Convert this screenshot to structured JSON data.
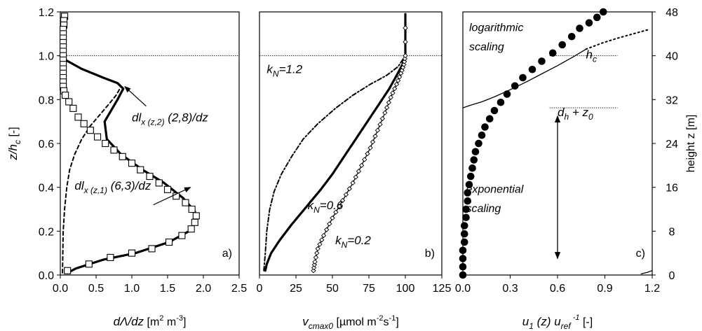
{
  "chart_data": [
    {
      "type": "line",
      "panel_label": "a)",
      "xlabel_parts": {
        "main": "dΛ/dz",
        "unit_pre": " [m",
        "sup1": "2",
        "mid": " m",
        "sup2": "-3",
        "end": "]"
      },
      "ylabel": "z/h_c [-]",
      "ylabel_parts": {
        "a": "z/h",
        "sub": "c",
        "b": " [-]"
      },
      "xlim": [
        0,
        2.5
      ],
      "ylim": [
        0,
        1.2
      ],
      "xticks": [
        "0.0",
        "0.5",
        "1.0",
        "1.5",
        "2.0",
        "2.5"
      ],
      "yticks": [
        "0.0",
        "0.2",
        "0.4",
        "0.6",
        "0.8",
        "1.0",
        "1.2"
      ],
      "reference_line_y": 1.0,
      "series": [
        {
          "style": "thick-solid",
          "x": [
            0.0,
            0.05,
            0.3,
            0.6,
            0.8,
            0.88,
            0.8,
            0.62,
            0.65,
            0.85,
            1.15,
            1.45,
            1.72,
            1.88,
            1.9,
            1.8,
            1.52,
            1.05,
            0.6,
            0.22,
            0.1
          ],
          "y": [
            1.0,
            0.985,
            0.94,
            0.9,
            0.875,
            0.85,
            0.8,
            0.7,
            0.62,
            0.55,
            0.48,
            0.42,
            0.35,
            0.29,
            0.25,
            0.2,
            0.15,
            0.1,
            0.07,
            0.03,
            0.01
          ]
        },
        {
          "style": "dashed",
          "x": [
            0.03,
            0.04,
            0.06,
            0.09,
            0.13,
            0.2,
            0.3,
            0.42,
            0.55,
            0.68,
            0.78,
            0.85
          ],
          "y": [
            0.01,
            0.2,
            0.3,
            0.4,
            0.48,
            0.55,
            0.62,
            0.68,
            0.73,
            0.78,
            0.82,
            0.86
          ]
        },
        {
          "style": "square-markers",
          "x": [
            0.06,
            0.05,
            0.05,
            0.04,
            0.04,
            0.04,
            0.04,
            0.04,
            0.04,
            0.04,
            0.04,
            0.04,
            0.04,
            0.04,
            0.04,
            0.04,
            0.04,
            0.05,
            0.07,
            0.12,
            0.18,
            0.25,
            0.33,
            0.42,
            0.52,
            0.63,
            0.75,
            0.87,
            1.0,
            1.12,
            1.25,
            1.38,
            1.5,
            1.62,
            1.75,
            1.84,
            1.9,
            1.88,
            1.83,
            1.7,
            1.52,
            1.28,
            1.0,
            0.7,
            0.4,
            0.1
          ],
          "y": [
            1.18,
            1.16,
            1.14,
            1.12,
            1.1,
            1.08,
            1.06,
            1.04,
            1.02,
            1.0,
            0.98,
            0.96,
            0.94,
            0.92,
            0.9,
            0.88,
            0.86,
            0.84,
            0.82,
            0.79,
            0.76,
            0.72,
            0.69,
            0.66,
            0.63,
            0.6,
            0.57,
            0.54,
            0.51,
            0.48,
            0.45,
            0.42,
            0.39,
            0.36,
            0.33,
            0.3,
            0.27,
            0.24,
            0.21,
            0.18,
            0.15,
            0.12,
            0.1,
            0.08,
            0.05,
            0.02
          ]
        }
      ],
      "annotations": [
        {
          "id": "a1",
          "parts": {
            "main": "dl",
            "sub": "x (z,2)",
            "rest": " (2,8)/dz"
          },
          "label_x": 1.0,
          "label_y": 0.7,
          "arrow_from": [
            1.2,
            0.77
          ],
          "arrow_to": [
            0.9,
            0.86
          ]
        },
        {
          "id": "a2",
          "parts": {
            "main": "dl",
            "sub": "x (z,1)",
            "rest": " (6,3)/dz"
          },
          "label_x": 0.2,
          "label_y": 0.39,
          "arrow_from": [
            1.3,
            0.32
          ],
          "arrow_to": [
            1.82,
            0.4
          ]
        }
      ]
    },
    {
      "type": "line",
      "panel_label": "b)",
      "xlabel_parts": {
        "main": "v",
        "sub": "cmax0",
        "unit_pre": " [µmol m",
        "sup1": "-2",
        "mid": "s",
        "sup2": "-1",
        "end": "]"
      },
      "xlim": [
        0,
        125
      ],
      "ylim": [
        0,
        1.2
      ],
      "xticks": [
        "0",
        "25",
        "50",
        "75",
        "100",
        "125"
      ],
      "reference_line_y": 1.0,
      "series": [
        {
          "style": "dash-dot",
          "name": "k_N=1.2",
          "x": [
            3,
            4,
            5,
            7,
            10,
            15,
            22,
            30,
            40,
            52,
            64,
            76,
            87,
            95,
            98,
            100,
            100
          ],
          "y": [
            0.02,
            0.1,
            0.2,
            0.3,
            0.38,
            0.46,
            0.54,
            0.62,
            0.69,
            0.76,
            0.82,
            0.87,
            0.91,
            0.95,
            0.98,
            1.0,
            1.19
          ]
        },
        {
          "style": "thick-solid",
          "name": "k_N=0.6",
          "x": [
            4,
            5,
            8,
            14,
            22,
            32,
            42,
            50,
            58,
            66,
            74,
            82,
            89,
            94,
            98,
            100,
            100
          ],
          "y": [
            0.02,
            0.05,
            0.1,
            0.16,
            0.23,
            0.31,
            0.39,
            0.46,
            0.54,
            0.62,
            0.7,
            0.78,
            0.85,
            0.91,
            0.96,
            1.0,
            1.19
          ]
        },
        {
          "style": "solid-diamond",
          "name": "k_N=0.2",
          "x": [
            37,
            38,
            40,
            44,
            50,
            57,
            64,
            70,
            76,
            81,
            86,
            90,
            94,
            97,
            99,
            100,
            100
          ],
          "y": [
            0.02,
            0.06,
            0.12,
            0.18,
            0.26,
            0.34,
            0.42,
            0.5,
            0.58,
            0.66,
            0.74,
            0.81,
            0.87,
            0.92,
            0.96,
            1.0,
            1.19
          ]
        }
      ],
      "annotations": [
        {
          "id": "b1",
          "parts": {
            "main": "k",
            "sub": "N",
            "rest": "=1.2"
          },
          "label_x": 5,
          "label_y": 0.92
        },
        {
          "id": "b2",
          "parts": {
            "main": "k",
            "sub": "N",
            "rest": "=0.6"
          },
          "label_x": 33,
          "label_y": 0.3
        },
        {
          "id": "b3",
          "parts": {
            "main": "k",
            "sub": "N",
            "rest": "=0.2"
          },
          "label_x": 52,
          "label_y": 0.14
        }
      ]
    },
    {
      "type": "scatter",
      "panel_label": "c)",
      "xlabel_parts": {
        "main": "u",
        "sub": "1",
        "mid_it": " (z) u",
        "sub2": "ref",
        "sup": " -1",
        "end": "  [-]"
      },
      "ylabel": "height z [m]",
      "xlim": [
        0,
        1.2
      ],
      "ylim": [
        0,
        48
      ],
      "xticks": [
        "0.0",
        "0.3",
        "0.6",
        "0.9",
        "1.2"
      ],
      "yticks_right": [
        "0",
        "8",
        "16",
        "24",
        "32",
        "40",
        "48"
      ],
      "reference_lines_y": [
        40,
        30.5
      ],
      "points": {
        "x": [
          0.0,
          0.0,
          0.0,
          0.0,
          0.01,
          0.01,
          0.01,
          0.02,
          0.02,
          0.03,
          0.03,
          0.04,
          0.05,
          0.06,
          0.07,
          0.08,
          0.1,
          0.12,
          0.14,
          0.17,
          0.2,
          0.24,
          0.28,
          0.33,
          0.38,
          0.44,
          0.5,
          0.57,
          0.63,
          0.69,
          0.74,
          0.8,
          0.85,
          0.89
        ],
        "y": [
          0,
          1.5,
          3,
          4.5,
          6,
          7.5,
          9,
          10.5,
          12,
          13.5,
          15,
          16.5,
          18,
          19.5,
          21,
          22.5,
          24,
          25.5,
          27,
          28.5,
          30,
          31.5,
          33,
          34.5,
          36,
          37.5,
          39,
          40.5,
          42,
          43.5,
          45,
          46,
          47,
          48
        ]
      },
      "series": [
        {
          "style": "thin-solid",
          "x": [
            0.0,
            0.05,
            0.12,
            0.2,
            0.3,
            0.4,
            0.5,
            0.6,
            0.7,
            0.78
          ],
          "y": [
            30.5,
            31.0,
            31.6,
            32.5,
            33.8,
            35.2,
            36.7,
            38.2,
            39.8,
            41.2
          ]
        },
        {
          "style": "dotted",
          "x": [
            0.78,
            0.88,
            0.98,
            1.08,
            1.18
          ],
          "y": [
            41.2,
            42.3,
            43.2,
            44.0,
            44.8
          ]
        },
        {
          "style": "thin-solid",
          "x": [
            1.13,
            1.17,
            1.2
          ],
          "y": [
            0.2,
            0.5,
            0.8
          ]
        }
      ],
      "annotations": [
        {
          "id": "c1",
          "text": "logarithmic",
          "label_x": 0.04,
          "label_y": 44.5
        },
        {
          "id": "c2",
          "text": "scaling",
          "label_x": 0.04,
          "label_y": 41.0
        },
        {
          "id": "c3",
          "text": "exponential",
          "label_x": 0.02,
          "label_y": 15.0
        },
        {
          "id": "c4",
          "text": "scaling",
          "label_x": 0.02,
          "label_y": 11.5
        },
        {
          "id": "c5",
          "parts": {
            "main": "h",
            "sub": "c"
          },
          "label_x": 0.78,
          "label_y": 39.5
        },
        {
          "id": "c6",
          "parts": {
            "main": "d",
            "sub": "h",
            "rest": " + z",
            "sub2": "0"
          },
          "label_x": 0.6,
          "label_y": 29.0
        }
      ],
      "double_arrow": {
        "x": 0.6,
        "y_top": 29.0,
        "y_bottom": 3.0
      }
    }
  ]
}
